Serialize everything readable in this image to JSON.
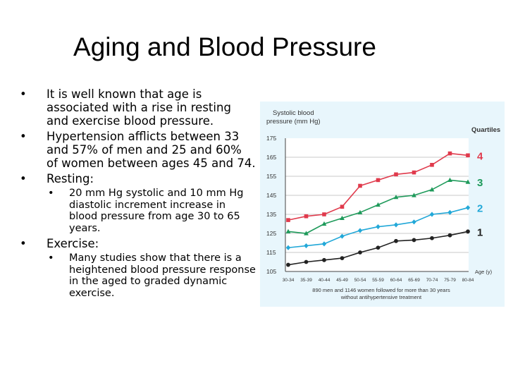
{
  "slide": {
    "title": "Aging and Blood Pressure",
    "bullets": [
      {
        "level": 1,
        "text": "It is well known that age is associated with a rise in resting and exercise blood pressure."
      },
      {
        "level": 1,
        "text": "Hypertension afflicts between 33 and 57% of men and 25 and 60% of women between ages 45 and 74."
      },
      {
        "level": 1,
        "text": "Resting:"
      },
      {
        "level": 2,
        "text": "20 mm Hg systolic and 10 mm Hg diastolic increment increase in blood pressure from age 30 to 65 years."
      },
      {
        "level": 1,
        "text": "Exercise:"
      },
      {
        "level": 2,
        "text": "Many studies show that there is a heightened blood pressure response in the aged to graded dynamic exercise."
      }
    ]
  },
  "chart_data": {
    "type": "line",
    "ylabel": "Systolic blood pressure (mm Hg)",
    "xlabel": "Age (y)",
    "legend_title": "Quartiles",
    "caption_line1": "890 men and 1146 women followed for more than 30 years",
    "caption_line2": "without antihypertensive treatment",
    "categories": [
      "30-34",
      "35-39",
      "40-44",
      "45-49",
      "50-54",
      "55-59",
      "60-64",
      "65-69",
      "70-74",
      "75-79",
      "80-84"
    ],
    "yticks": [
      105,
      115,
      125,
      135,
      145,
      155,
      165,
      175
    ],
    "ylim": [
      105,
      175
    ],
    "series": [
      {
        "name": "4",
        "color": "#e03a4c",
        "marker": "square",
        "values": [
          132,
          134,
          135,
          139,
          150,
          153,
          156,
          157,
          161,
          167,
          166
        ]
      },
      {
        "name": "3",
        "color": "#1e9a5a",
        "marker": "triangle",
        "values": [
          126,
          125,
          130,
          133,
          136,
          140,
          144,
          145,
          148,
          153,
          152
        ]
      },
      {
        "name": "2",
        "color": "#22a8d8",
        "marker": "diamond",
        "values": [
          117.5,
          118.5,
          119.5,
          123.5,
          126.5,
          128.5,
          129.5,
          131,
          135,
          136,
          138.5
        ]
      },
      {
        "name": "1",
        "color": "#222222",
        "marker": "circle",
        "values": [
          108.5,
          110,
          111,
          112,
          115,
          117.5,
          121,
          121.5,
          122.5,
          124,
          126
        ]
      }
    ]
  }
}
